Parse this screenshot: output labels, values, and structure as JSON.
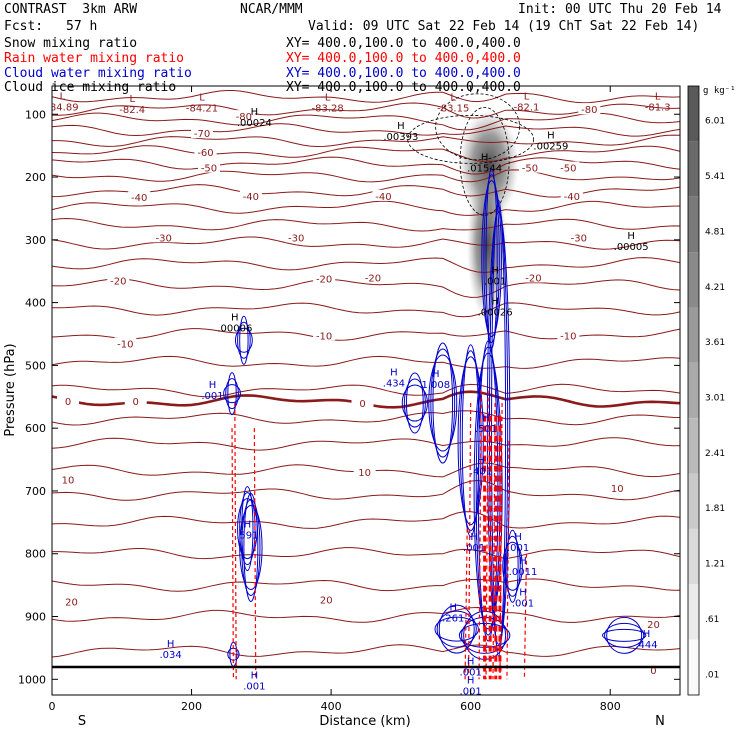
{
  "header": {
    "model": "CONTRAST  3km ARW",
    "org": "NCAR/MMM",
    "init": "Init: 00 UTC Thu 20 Feb 14",
    "fcst_label": "Fcst:",
    "fcst_value": "57 h",
    "valid": "Valid: 09 UTC Sat 22 Feb 14 (19 ChT Sat 22 Feb 14)",
    "fields": [
      {
        "name": "Snow mixing ratio",
        "xy": "XY= 400.0,100.0 to 400.0,400.0",
        "color": "#000000"
      },
      {
        "name": "Rain water mixing ratio",
        "xy": "XY= 400.0,100.0 to 400.0,400.0",
        "color": "#ff0000"
      },
      {
        "name": "Cloud water mixing ratio",
        "xy": "XY= 400.0,100.0 to 400.0,400.0",
        "color": "#0000cc"
      },
      {
        "name": "Cloud ice mixing ratio",
        "xy": "XY= 400.0,100.0 to 400.0,400.0",
        "color": "#000000"
      }
    ]
  },
  "colors": {
    "temperature": "#8b1a1a",
    "rain": "#ff0000",
    "cloud_water": "#0000cc",
    "snow": "#000000",
    "ice_shade": "#505050"
  },
  "chart_data": {
    "type": "contour",
    "xlabel": "Distance (km)",
    "ylabel": "Pressure (hPa)",
    "xlim": [
      0,
      900
    ],
    "ylim": [
      1025,
      55
    ],
    "y_scale": "linear-inverted",
    "x_ticks": [
      "0",
      "200",
      "400",
      "600",
      "800"
    ],
    "x_tick_values": [
      0,
      200,
      400,
      600,
      800
    ],
    "y_ticks": [
      "100",
      "200",
      "300",
      "400",
      "500",
      "600",
      "700",
      "800",
      "900",
      "1000"
    ],
    "y_tick_values": [
      100,
      200,
      300,
      400,
      500,
      600,
      700,
      800,
      900,
      1000
    ],
    "end_labels": {
      "left": "S",
      "right": "N"
    },
    "colorbar": {
      "unit": "g kg⁻¹",
      "labels": [
        "6.01",
        "5.41",
        "4.81",
        "4.21",
        "3.61",
        "3.01",
        "2.41",
        "1.81",
        "1.21",
        ".61",
        ".01"
      ],
      "values": [
        6.01,
        5.41,
        4.81,
        4.21,
        3.61,
        3.01,
        2.41,
        1.81,
        1.21,
        0.61,
        0.01
      ]
    },
    "temperature_isotherm_labels": [
      {
        "text": "-80",
        "x": 275,
        "p": 103
      },
      {
        "text": "-80",
        "x": 770,
        "p": 92
      },
      {
        "text": "-70",
        "x": 215,
        "p": 130
      },
      {
        "text": "-60",
        "x": 220,
        "p": 160
      },
      {
        "text": "-50",
        "x": 225,
        "p": 185
      },
      {
        "text": "-50",
        "x": 685,
        "p": 185
      },
      {
        "text": "-50",
        "x": 740,
        "p": 185
      },
      {
        "text": "-40",
        "x": 125,
        "p": 232
      },
      {
        "text": "-40",
        "x": 285,
        "p": 230
      },
      {
        "text": "-40",
        "x": 475,
        "p": 230
      },
      {
        "text": "-40",
        "x": 745,
        "p": 230
      },
      {
        "text": "-30",
        "x": 160,
        "p": 296
      },
      {
        "text": "-30",
        "x": 350,
        "p": 296
      },
      {
        "text": "-30",
        "x": 755,
        "p": 296
      },
      {
        "text": "-20",
        "x": 95,
        "p": 365
      },
      {
        "text": "-20",
        "x": 390,
        "p": 362
      },
      {
        "text": "-20",
        "x": 460,
        "p": 360
      },
      {
        "text": "-20",
        "x": 690,
        "p": 360
      },
      {
        "text": "-10",
        "x": 105,
        "p": 465
      },
      {
        "text": "-10",
        "x": 390,
        "p": 452
      },
      {
        "text": "-10",
        "x": 740,
        "p": 452
      },
      {
        "text": "0",
        "x": 23,
        "p": 557
      },
      {
        "text": "0",
        "x": 120,
        "p": 557
      },
      {
        "text": "0",
        "x": 445,
        "p": 560
      },
      {
        "text": "10",
        "x": 23,
        "p": 682
      },
      {
        "text": "10",
        "x": 448,
        "p": 670
      },
      {
        "text": "10",
        "x": 810,
        "p": 695
      },
      {
        "text": "20",
        "x": 28,
        "p": 876
      },
      {
        "text": "20",
        "x": 393,
        "p": 873
      },
      {
        "text": "20",
        "x": 862,
        "p": 912
      },
      {
        "text": "0",
        "x": 862,
        "p": 985
      }
    ],
    "extremes": [
      {
        "kind": "L",
        "value": "-84.89",
        "x": 15,
        "p": 78
      },
      {
        "kind": "L",
        "value": "-82.4",
        "x": 115,
        "p": 82
      },
      {
        "kind": "L",
        "value": "-84.21",
        "x": 215,
        "p": 80
      },
      {
        "kind": "L",
        "value": "-83.28",
        "x": 395,
        "p": 80
      },
      {
        "kind": "L",
        "value": "-83.15",
        "x": 575,
        "p": 80
      },
      {
        "kind": "L",
        "value": "-82.1",
        "x": 680,
        "p": 78
      },
      {
        "kind": "L",
        "value": "-81.3",
        "x": 868,
        "p": 78
      },
      {
        "kind": "H",
        "value": ".00024",
        "x": 290,
        "p": 103
      },
      {
        "kind": "H",
        "value": ".00393",
        "x": 500,
        "p": 125
      },
      {
        "kind": "H",
        "value": ".00259",
        "x": 715,
        "p": 140
      },
      {
        "kind": "H",
        "value": ".01544",
        "x": 620,
        "p": 175
      },
      {
        "kind": "H",
        "value": ".00005",
        "x": 830,
        "p": 300
      },
      {
        "kind": "H",
        "value": ".001",
        "x": 635,
        "p": 355
      },
      {
        "kind": "H",
        "value": ".00006",
        "x": 262,
        "p": 430
      },
      {
        "kind": "H",
        "value": ".00026",
        "x": 635,
        "p": 405
      },
      {
        "kind": "H",
        "value": ".434",
        "x": 490,
        "p": 518
      },
      {
        "kind": "H",
        "value": "1.008",
        "x": 550,
        "p": 520
      },
      {
        "kind": "H",
        "value": ".001",
        "x": 230,
        "p": 538
      },
      {
        "kind": "H",
        "value": ".501",
        "x": 622,
        "p": 590
      },
      {
        "kind": "H",
        "value": ".401",
        "x": 615,
        "p": 658
      },
      {
        "kind": "H",
        "value": ".591",
        "x": 280,
        "p": 760
      },
      {
        "kind": "H",
        "value": ".001",
        "x": 605,
        "p": 780
      },
      {
        "kind": "H",
        "value": ".001",
        "x": 668,
        "p": 780
      },
      {
        "kind": "H",
        "value": ".0011",
        "x": 675,
        "p": 818
      },
      {
        "kind": "H",
        "value": ".001",
        "x": 675,
        "p": 868
      },
      {
        "kind": "H",
        "value": ".261",
        "x": 575,
        "p": 892
      },
      {
        "kind": "H",
        "value": ".034",
        "x": 170,
        "p": 950
      },
      {
        "kind": "H",
        "value": ".444",
        "x": 852,
        "p": 934
      },
      {
        "kind": "H",
        "value": ".001",
        "x": 290,
        "p": 1000
      },
      {
        "kind": "H",
        "value": ".001",
        "x": 600,
        "p": 978
      },
      {
        "kind": "H",
        "value": ".001",
        "x": 600,
        "p": 1008
      }
    ]
  }
}
